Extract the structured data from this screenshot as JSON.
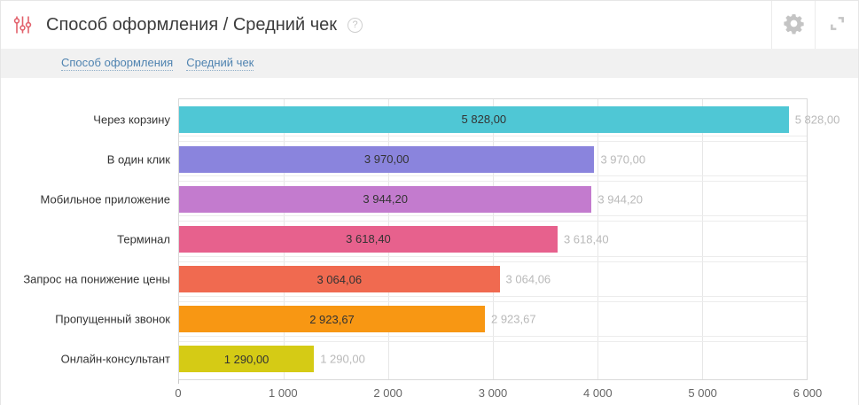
{
  "header": {
    "title": "Способ оформления / Средний чек",
    "help_glyph": "?"
  },
  "tabs": [
    {
      "label": "Способ оформления"
    },
    {
      "label": "Средний чек"
    }
  ],
  "chart_data": {
    "type": "bar",
    "orientation": "horizontal",
    "title": "Способ оформления / Средний чек",
    "categories": [
      "Через корзину",
      "В один клик",
      "Мобильное приложение",
      "Терминал",
      "Запрос на понижение цены",
      "Пропущенный звонок",
      "Онлайн-консультант"
    ],
    "values": [
      5828.0,
      3970.0,
      3944.2,
      3618.4,
      3064.06,
      2923.67,
      1290.0
    ],
    "value_labels": [
      "5 828,00",
      "3 970,00",
      "3 944,20",
      "3 618,40",
      "3 064,06",
      "2 923,67",
      "1 290,00"
    ],
    "bar_colors": [
      "#4fc7d5",
      "#8a84dd",
      "#c37bce",
      "#e7618d",
      "#f06a50",
      "#f89713",
      "#d5cb15"
    ],
    "xlabel": "",
    "ylabel": "",
    "xlim": [
      0,
      6000
    ],
    "x_ticks": [
      "0",
      "1 000",
      "2 000",
      "3 000",
      "4 000",
      "5 000",
      "6 000"
    ],
    "grid": true,
    "legend": false
  },
  "colors": {
    "widget_icon": "#e2606b",
    "link": "#4f83b0",
    "inside_label": "#333333",
    "outside_label": "#b9b9b9",
    "action_icon": "#c4c4c4"
  }
}
